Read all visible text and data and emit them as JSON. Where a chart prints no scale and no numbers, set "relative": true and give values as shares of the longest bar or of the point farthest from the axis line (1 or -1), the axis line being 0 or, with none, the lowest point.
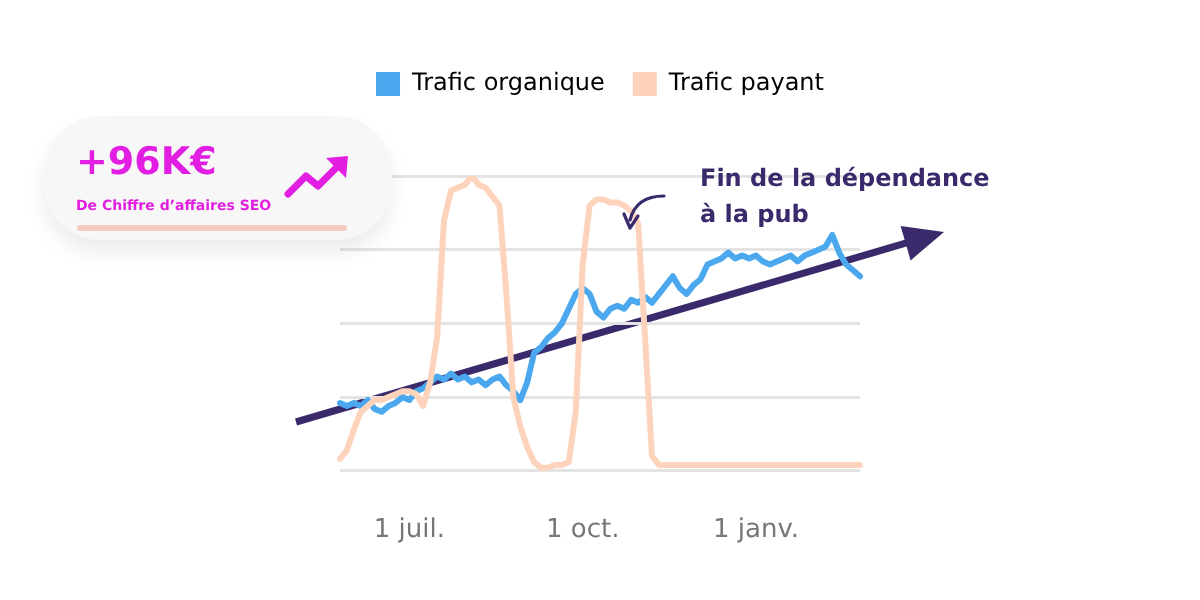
{
  "chart_data": {
    "type": "line",
    "relative": true,
    "grid": "y",
    "legend": "top",
    "marker": "none",
    "categories": [
      null,
      null,
      null,
      null,
      null,
      null,
      null,
      null,
      null,
      null,
      "1 juil.",
      null,
      null,
      null,
      null,
      null,
      null,
      null,
      null,
      null,
      null,
      null,
      null,
      null,
      null,
      null,
      null,
      null,
      null,
      null,
      null,
      null,
      null,
      null,
      null,
      "1 oct.",
      null,
      null,
      null,
      null,
      null,
      null,
      null,
      null,
      null,
      null,
      null,
      null,
      null,
      null,
      null,
      null,
      null,
      null,
      null,
      null,
      null,
      null,
      null,
      null,
      "1 janv.",
      null,
      null,
      null,
      null,
      null,
      null,
      null,
      null,
      null,
      null,
      null,
      null,
      null,
      null,
      null
    ],
    "series": [
      {
        "name": "Trafic organique",
        "color": "#4ba8ef",
        "values": [
          0.23,
          0.22,
          0.23,
          0.22,
          0.24,
          0.21,
          0.2,
          0.22,
          0.23,
          0.25,
          0.24,
          0.27,
          0.28,
          0.3,
          0.32,
          0.31,
          0.33,
          0.31,
          0.32,
          0.3,
          0.31,
          0.29,
          0.31,
          0.32,
          0.29,
          0.27,
          0.24,
          0.3,
          0.4,
          0.42,
          0.45,
          0.47,
          0.5,
          0.55,
          0.6,
          0.62,
          0.6,
          0.54,
          0.52,
          0.55,
          0.56,
          0.55,
          0.58,
          0.57,
          0.59,
          0.57,
          0.6,
          0.63,
          0.66,
          0.62,
          0.6,
          0.63,
          0.65,
          0.7,
          0.71,
          0.72,
          0.74,
          0.72,
          0.73,
          0.72,
          0.73,
          0.71,
          0.7,
          0.71,
          0.72,
          0.73,
          0.71,
          0.73,
          0.74,
          0.75,
          0.76,
          0.8,
          0.74,
          0.7,
          0.68,
          0.66
        ]
      },
      {
        "name": "Trafic payant",
        "color": "#fdd3bb",
        "values": [
          0.04,
          0.07,
          0.14,
          0.2,
          0.22,
          0.24,
          0.24,
          0.25,
          0.26,
          0.27,
          0.27,
          0.26,
          0.22,
          0.3,
          0.45,
          0.85,
          0.95,
          0.96,
          0.97,
          1,
          0.97,
          0.96,
          0.93,
          0.9,
          0.6,
          0.25,
          0.15,
          0.08,
          0.03,
          0.01,
          0.01,
          0.02,
          0.02,
          0.03,
          0.2,
          0.7,
          0.9,
          0.92,
          0.92,
          0.91,
          0.91,
          0.9,
          0.88,
          0.84,
          0.45,
          0.05,
          0.02,
          0.02,
          0.02,
          0.02,
          0.02,
          0.02,
          0.02,
          0.02,
          0.02,
          0.02,
          0.02,
          0.02,
          0.02,
          0.02,
          0.02,
          0.02,
          0.02,
          0.02,
          0.02,
          0.02,
          0.02,
          0.02,
          0.02,
          0.02,
          0.02,
          0.02,
          0.02,
          0.02,
          0.02,
          0.02
        ]
      }
    ],
    "annotations": [
      "+96K€",
      "De Chiffre d’affaires SEO",
      "Fin de la dépendance à la pub"
    ]
  }
}
